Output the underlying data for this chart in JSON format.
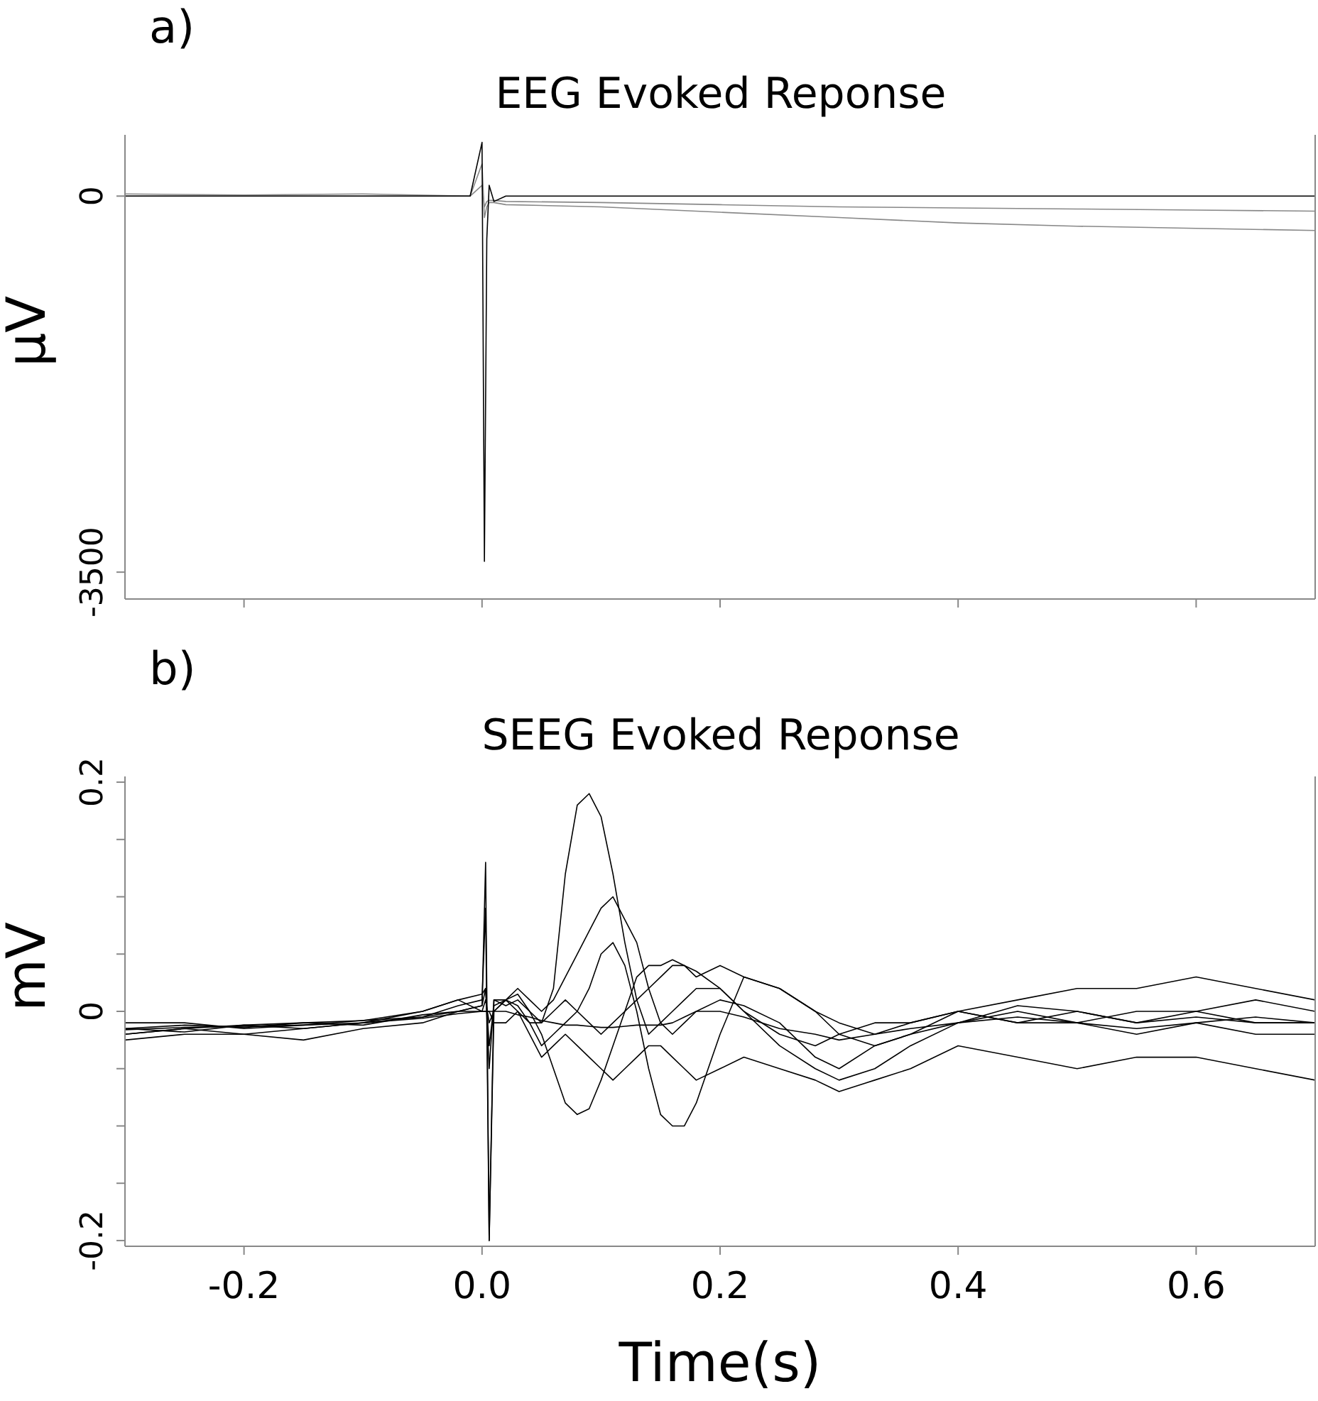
{
  "chart_data": [
    {
      "type": "line",
      "title": "EEG Evoked Reponse",
      "ylabel": "µV",
      "annotations": [
        "a)"
      ],
      "marker": "none",
      "line_style": "solid",
      "tick_labels": "y",
      "x": [
        -0.3,
        -0.2,
        -0.1,
        -0.01,
        0,
        0.002,
        0.004,
        0.006,
        0.01,
        0.02,
        0.1,
        0.2,
        0.3,
        0.4,
        0.5,
        0.6,
        0.7
      ],
      "xlim": [
        -0.3,
        0.7
      ],
      "xticks": [
        {
          "value": -0.2,
          "label": null
        },
        {
          "value": 0,
          "label": null
        },
        {
          "value": 0.2,
          "label": null
        },
        {
          "value": 0.4,
          "label": null
        },
        {
          "value": 0.6,
          "label": null
        }
      ],
      "ylim": [
        -3750,
        570
      ],
      "yticks": [
        -3500,
        0
      ],
      "series": [
        {
          "color": "#888888",
          "values": [
            20,
            10,
            20,
            0,
            300,
            -200,
            -100,
            -60,
            -60,
            -80,
            -100,
            -150,
            -200,
            -250,
            -280,
            -300,
            -320
          ]
        },
        {
          "color": "#888888",
          "values": [
            0,
            0,
            0,
            0,
            100,
            -100,
            -50,
            -40,
            -40,
            -50,
            -60,
            -80,
            -100,
            -110,
            -120,
            -130,
            -140
          ]
        },
        {
          "color": "#000000",
          "values": [
            0,
            0,
            0,
            0,
            500,
            -3400,
            -400,
            100,
            -50,
            0,
            0,
            0,
            0,
            0,
            0,
            0,
            0
          ]
        }
      ]
    },
    {
      "type": "line",
      "title": "SEEG Evoked Reponse",
      "xlabel": "Time(s)",
      "ylabel": "mV",
      "annotations": [
        "b)"
      ],
      "marker": "none",
      "line_style": "solid",
      "x": [
        -0.3,
        -0.25,
        -0.2,
        -0.15,
        -0.1,
        -0.05,
        -0.02,
        0,
        0.003,
        0.006,
        0.01,
        0.02,
        0.03,
        0.04,
        0.05,
        0.06,
        0.07,
        0.08,
        0.09,
        0.1,
        0.11,
        0.12,
        0.13,
        0.14,
        0.15,
        0.16,
        0.17,
        0.18,
        0.2,
        0.22,
        0.25,
        0.28,
        0.3,
        0.33,
        0.36,
        0.4,
        0.45,
        0.5,
        0.55,
        0.6,
        0.65,
        0.7
      ],
      "xlim": [
        -0.3,
        0.7
      ],
      "xticks": [
        -0.2,
        {
          "value": 0,
          "label": "0.0"
        },
        0.2,
        0.4,
        0.6
      ],
      "ylim": [
        -0.205,
        0.205
      ],
      "yticks": [
        -0.2,
        {
          "value": -0.15,
          "label": null
        },
        {
          "value": -0.1,
          "label": null
        },
        {
          "value": -0.05,
          "label": null
        },
        0,
        {
          "value": 0.05,
          "label": null
        },
        {
          "value": 0.1,
          "label": null
        },
        {
          "value": 0.15,
          "label": null
        },
        0.2
      ],
      "series": [
        {
          "color": "#000000",
          "values": [
            -0.015,
            -0.012,
            -0.014,
            -0.01,
            -0.008,
            -0.005,
            0,
            0.005,
            0.13,
            -0.2,
            0.01,
            0.005,
            0.01,
            0.0,
            -0.01,
            0.02,
            0.12,
            0.18,
            0.19,
            0.17,
            0.12,
            0.06,
            0.01,
            -0.02,
            -0.01,
            0.0,
            0.01,
            0.02,
            0.02,
            0.0,
            -0.02,
            -0.03,
            -0.02,
            -0.01,
            -0.01,
            0.0,
            -0.01,
            -0.01,
            0.0,
            0.0,
            -0.01,
            -0.01
          ]
        },
        {
          "color": "#000000",
          "values": [
            -0.02,
            -0.015,
            -0.012,
            -0.015,
            -0.01,
            -0.005,
            0.005,
            0.01,
            0.09,
            -0.2,
            0.0,
            0.01,
            0.005,
            -0.01,
            -0.03,
            -0.02,
            -0.01,
            0.0,
            0.02,
            0.05,
            0.06,
            0.04,
            0.0,
            -0.05,
            -0.09,
            -0.1,
            -0.1,
            -0.08,
            -0.02,
            0.03,
            0.02,
            0.0,
            -0.02,
            -0.03,
            -0.02,
            0.0,
            -0.01,
            0.0,
            -0.01,
            -0.005,
            -0.01,
            -0.01
          ]
        },
        {
          "color": "#000000",
          "values": [
            -0.01,
            -0.01,
            -0.015,
            -0.012,
            -0.008,
            0.0,
            0.01,
            0.015,
            0.02,
            -0.05,
            0.01,
            0.01,
            0.015,
            0.0,
            -0.02,
            -0.05,
            -0.08,
            -0.09,
            -0.085,
            -0.06,
            -0.03,
            0.0,
            0.03,
            0.04,
            0.04,
            0.045,
            0.04,
            0.035,
            0.02,
            0.0,
            -0.03,
            -0.05,
            -0.06,
            -0.05,
            -0.03,
            -0.01,
            0.0,
            -0.01,
            -0.02,
            -0.01,
            -0.02,
            -0.02
          ]
        },
        {
          "color": "#000000",
          "values": [
            -0.015,
            -0.018,
            -0.012,
            -0.01,
            -0.012,
            -0.003,
            0.0,
            0.005,
            0.02,
            -0.03,
            0.005,
            0.01,
            0.02,
            0.01,
            0.0,
            0.01,
            0.03,
            0.05,
            0.07,
            0.09,
            0.1,
            0.08,
            0.06,
            0.02,
            -0.01,
            -0.02,
            -0.01,
            0.0,
            0.01,
            0.005,
            -0.01,
            -0.04,
            -0.05,
            -0.03,
            -0.02,
            -0.01,
            0.005,
            0.0,
            -0.01,
            0.0,
            0.01,
            0.0
          ]
        },
        {
          "color": "#000000",
          "values": [
            -0.02,
            -0.015,
            -0.02,
            -0.015,
            -0.01,
            0.0,
            0.01,
            0.0,
            0.01,
            -0.01,
            0.0,
            0.01,
            0.0,
            -0.01,
            -0.01,
            0.0,
            0.01,
            0.0,
            -0.01,
            -0.02,
            -0.01,
            0.0,
            0.01,
            0.02,
            0.03,
            0.04,
            0.04,
            0.03,
            0.04,
            0.03,
            0.02,
            0.0,
            -0.01,
            -0.02,
            -0.01,
            0.0,
            0.01,
            0.02,
            0.02,
            0.03,
            0.02,
            0.01
          ]
        },
        {
          "color": "#000000",
          "values": [
            -0.025,
            -0.02,
            -0.02,
            -0.025,
            -0.015,
            -0.01,
            0.0,
            0.0,
            0.0,
            0.0,
            -0.01,
            -0.01,
            0.0,
            -0.02,
            -0.04,
            -0.03,
            -0.02,
            -0.03,
            -0.04,
            -0.05,
            -0.06,
            -0.05,
            -0.04,
            -0.03,
            -0.03,
            -0.04,
            -0.05,
            -0.06,
            -0.05,
            -0.04,
            -0.05,
            -0.06,
            -0.07,
            -0.06,
            -0.05,
            -0.03,
            -0.04,
            -0.05,
            -0.04,
            -0.04,
            -0.05,
            -0.06
          ]
        },
        {
          "color": "#000000",
          "values": [
            -0.016,
            -0.014,
            -0.013,
            -0.012,
            -0.01,
            -0.006,
            -0.002,
            0.0,
            0.0,
            0.0,
            0.0,
            0.0,
            -0.003,
            -0.005,
            -0.008,
            -0.01,
            -0.012,
            -0.012,
            -0.013,
            -0.014,
            -0.014,
            -0.013,
            -0.012,
            -0.012,
            -0.012,
            -0.01,
            -0.005,
            0.0,
            0.0,
            -0.005,
            -0.015,
            -0.02,
            -0.025,
            -0.02,
            -0.015,
            -0.01,
            -0.005,
            -0.01,
            -0.015,
            -0.01,
            -0.005,
            -0.01
          ]
        }
      ]
    }
  ]
}
